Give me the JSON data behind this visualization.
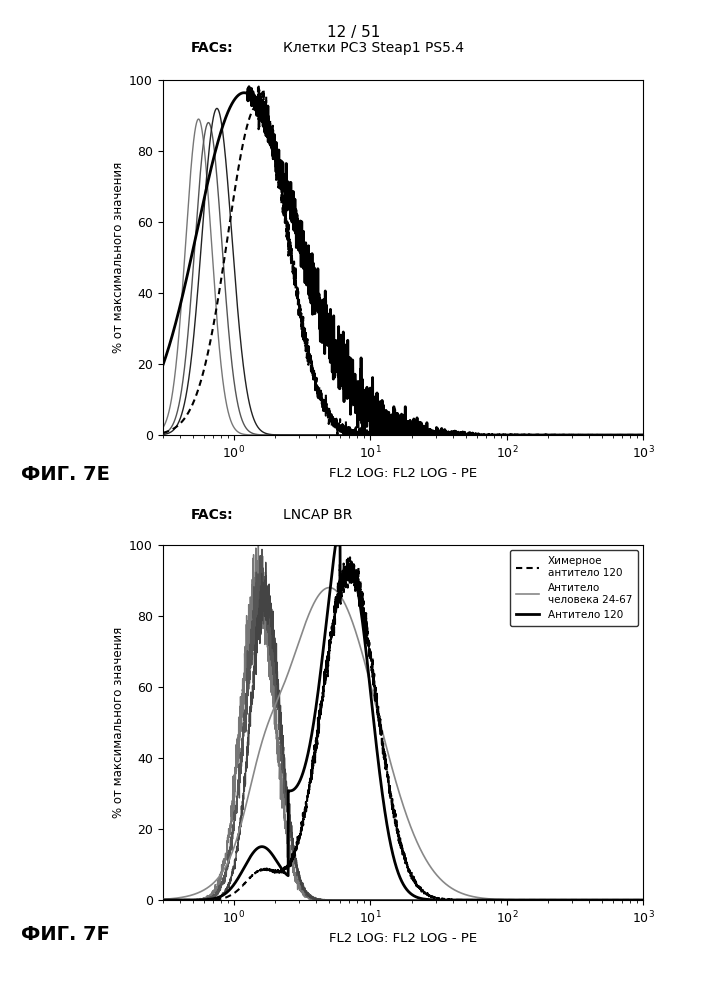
{
  "title_top": "12 / 51",
  "fig7e_title_facs": "FACs:",
  "fig7e_title_main": "Клетки PC3 Steap1 PS5.4",
  "fig7f_title_facs": "FACs:",
  "fig7f_title_main": "LNCAP BR",
  "ylabel": "% от максимального значения",
  "xlabel": "FL2 LOG: FL2 LOG - PE",
  "fig7e_label": "ФИГ. 7E",
  "fig7f_label": "ФИГ. 7F",
  "legend_label_chimeric": "Химерное\nантитело 120",
  "legend_label_human": "Антитело\nчеловека 24-67",
  "legend_label_ab120": "Антитело 120",
  "xlim_log": [
    0.3,
    1000
  ],
  "ylim": [
    0,
    100
  ],
  "yticks": [
    0,
    20,
    40,
    60,
    80,
    100
  ]
}
